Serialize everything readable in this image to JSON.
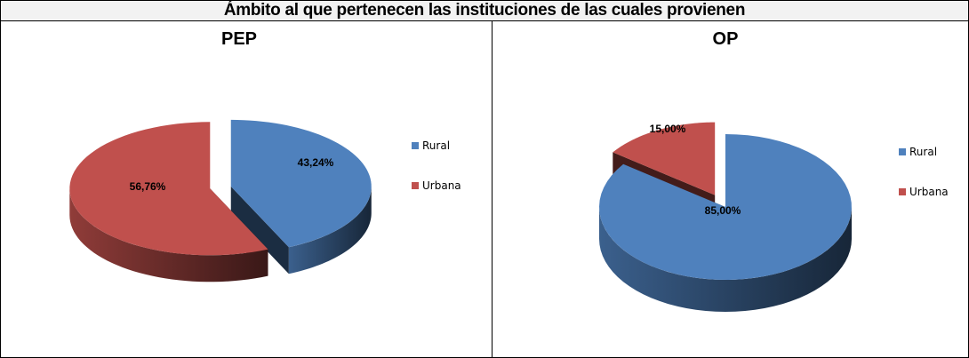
{
  "title": "Ámbito al que pertenecen las instituciones de las cuales provienen",
  "chart_data": [
    {
      "type": "pie",
      "title": "PEP",
      "categories": [
        "Rural",
        "Urbana"
      ],
      "values": [
        43.24,
        56.76
      ],
      "labels": [
        "43,24%",
        "56,76%"
      ],
      "colors": [
        "#4f81bd",
        "#c0504d"
      ],
      "legend": "right"
    },
    {
      "type": "pie",
      "title": "OP",
      "categories": [
        "Rural",
        "Urbana"
      ],
      "values": [
        85.0,
        15.0
      ],
      "labels": [
        "85,00%",
        "15,00%"
      ],
      "colors": [
        "#4f81bd",
        "#c0504d"
      ],
      "legend": "right"
    }
  ]
}
